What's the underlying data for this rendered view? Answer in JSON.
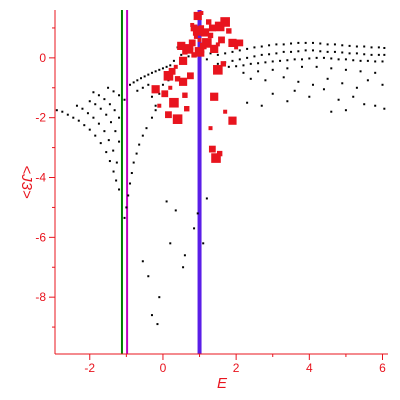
{
  "chart_data": {
    "type": "scatter",
    "title": "",
    "xlabel": "E",
    "ylabel": "<J3>",
    "xlim": [
      -2.95,
      6.15
    ],
    "ylim": [
      -9.9,
      1.6
    ],
    "x_ticks": [
      -2,
      0,
      2,
      4,
      6
    ],
    "y_ticks": [
      0,
      -2,
      -4,
      -6,
      -8
    ],
    "grid": false,
    "legend": "none",
    "colors": {
      "axis": "#e8141e",
      "small_points": "#000000",
      "large_points": "#e8141e",
      "line_green": "#008000",
      "line_magenta": "#c000c0",
      "line_blue": "#5a1ee8"
    },
    "vertical_lines": [
      {
        "x": -1.12,
        "color": "#008000"
      },
      {
        "x": -0.98,
        "color": "#c000c0"
      },
      {
        "x": 1.0,
        "color": "#5a1ee8"
      }
    ],
    "series": [
      {
        "marker": "small-black",
        "points": [
          [
            -2.9,
            -1.75
          ],
          [
            -2.75,
            -1.8
          ],
          [
            -2.6,
            -1.9
          ],
          [
            -2.45,
            -2.0
          ],
          [
            -2.3,
            -2.1
          ],
          [
            -2.15,
            -2.25
          ],
          [
            -2.0,
            -2.4
          ],
          [
            -1.85,
            -2.6
          ],
          [
            -1.7,
            -2.85
          ],
          [
            -1.55,
            -3.15
          ],
          [
            -1.45,
            -3.45
          ],
          [
            -1.35,
            -3.8
          ],
          [
            -1.28,
            -4.1
          ],
          [
            -1.2,
            -4.4
          ],
          [
            -2.35,
            -1.6
          ],
          [
            -2.2,
            -1.7
          ],
          [
            -2.05,
            -1.85
          ],
          [
            -1.9,
            -2.0
          ],
          [
            -1.75,
            -2.2
          ],
          [
            -1.6,
            -2.45
          ],
          [
            -1.48,
            -2.75
          ],
          [
            -1.36,
            -3.1
          ],
          [
            -1.26,
            -3.5
          ],
          [
            -2.0,
            -1.45
          ],
          [
            -1.85,
            -1.55
          ],
          [
            -1.7,
            -1.7
          ],
          [
            -1.55,
            -1.9
          ],
          [
            -1.42,
            -2.15
          ],
          [
            -1.3,
            -2.45
          ],
          [
            -1.2,
            -2.8
          ],
          [
            -1.9,
            -1.15
          ],
          [
            -1.75,
            -1.25
          ],
          [
            -1.6,
            -1.38
          ],
          [
            -1.45,
            -1.55
          ],
          [
            -1.32,
            -1.75
          ],
          [
            -1.2,
            -2.0
          ],
          [
            -1.5,
            -1.0
          ],
          [
            -1.35,
            -1.12
          ],
          [
            -1.2,
            -1.25
          ],
          [
            -1.05,
            -1.4
          ],
          [
            -1.05,
            -5.35
          ],
          [
            -1.0,
            -5.0
          ],
          [
            -0.95,
            -4.6
          ],
          [
            -0.9,
            -4.2
          ],
          [
            -0.85,
            -3.85
          ],
          [
            -0.8,
            -3.5
          ],
          [
            -0.72,
            -3.2
          ],
          [
            -0.65,
            -2.9
          ],
          [
            -0.55,
            -2.6
          ],
          [
            -0.45,
            -2.35
          ],
          [
            -0.3,
            -2.0
          ],
          [
            -0.2,
            -1.75
          ],
          [
            -0.55,
            -6.8
          ],
          [
            -0.4,
            -7.3
          ],
          [
            -0.3,
            -8.6
          ],
          [
            -0.15,
            -8.9
          ],
          [
            -0.1,
            -8.0
          ],
          [
            0.1,
            -4.8
          ],
          [
            0.2,
            -6.2
          ],
          [
            0.35,
            -5.1
          ],
          [
            0.55,
            -7.0
          ],
          [
            0.6,
            -6.6
          ],
          [
            0.85,
            -5.7
          ],
          [
            0.95,
            -5.2
          ],
          [
            1.1,
            -6.2
          ],
          [
            1.2,
            -4.7
          ],
          [
            -0.9,
            -0.9
          ],
          [
            -0.8,
            -0.82
          ],
          [
            -0.7,
            -0.75
          ],
          [
            -0.6,
            -0.68
          ],
          [
            -0.5,
            -0.62
          ],
          [
            -0.4,
            -0.56
          ],
          [
            -0.3,
            -0.5
          ],
          [
            -0.2,
            -0.45
          ],
          [
            -0.1,
            -0.4
          ],
          [
            0.0,
            -0.35
          ],
          [
            0.1,
            -0.3
          ],
          [
            0.2,
            -0.25
          ],
          [
            -0.7,
            -1.1
          ],
          [
            -0.55,
            -1.0
          ],
          [
            -0.4,
            -0.9
          ],
          [
            -0.3,
            -1.3
          ],
          [
            -0.2,
            -1.6
          ],
          [
            -0.1,
            -1.2
          ],
          [
            0.0,
            -0.9
          ],
          [
            0.15,
            -0.75
          ],
          [
            1.5,
            0.1
          ],
          [
            1.7,
            0.15
          ],
          [
            1.9,
            0.2
          ],
          [
            2.1,
            0.25
          ],
          [
            2.3,
            0.3
          ],
          [
            2.5,
            0.35
          ],
          [
            2.7,
            0.38
          ],
          [
            2.9,
            0.42
          ],
          [
            3.1,
            0.45
          ],
          [
            3.3,
            0.45
          ],
          [
            3.5,
            0.48
          ],
          [
            3.7,
            0.5
          ],
          [
            3.9,
            0.5
          ],
          [
            4.1,
            0.5
          ],
          [
            4.3,
            0.48
          ],
          [
            4.5,
            0.45
          ],
          [
            4.7,
            0.45
          ],
          [
            4.9,
            0.42
          ],
          [
            5.1,
            0.4
          ],
          [
            5.3,
            0.38
          ],
          [
            5.5,
            0.38
          ],
          [
            5.7,
            0.35
          ],
          [
            5.9,
            0.35
          ],
          [
            6.05,
            0.33
          ],
          [
            1.5,
            -0.2
          ],
          [
            1.7,
            -0.15
          ],
          [
            1.9,
            -0.1
          ],
          [
            2.1,
            -0.05
          ],
          [
            2.3,
            0.0
          ],
          [
            2.5,
            0.05
          ],
          [
            2.7,
            0.1
          ],
          [
            2.9,
            0.12
          ],
          [
            3.1,
            0.15
          ],
          [
            3.3,
            0.2
          ],
          [
            3.5,
            0.2
          ],
          [
            3.7,
            0.22
          ],
          [
            3.9,
            0.25
          ],
          [
            4.1,
            0.25
          ],
          [
            4.3,
            0.22
          ],
          [
            4.5,
            0.2
          ],
          [
            4.7,
            0.2
          ],
          [
            4.9,
            0.18
          ],
          [
            5.1,
            0.15
          ],
          [
            5.3,
            0.15
          ],
          [
            5.5,
            0.12
          ],
          [
            5.7,
            0.1
          ],
          [
            5.9,
            0.1
          ],
          [
            6.05,
            0.1
          ],
          [
            1.6,
            -0.35
          ],
          [
            1.8,
            -0.3
          ],
          [
            2.0,
            -0.28
          ],
          [
            2.2,
            -0.25
          ],
          [
            2.4,
            -0.2
          ],
          [
            2.6,
            -0.18
          ],
          [
            2.8,
            -0.15
          ],
          [
            3.0,
            -0.12
          ],
          [
            3.2,
            -0.1
          ],
          [
            3.4,
            -0.08
          ],
          [
            3.6,
            -0.05
          ],
          [
            3.8,
            -0.05
          ],
          [
            4.0,
            -0.02
          ],
          [
            4.2,
            0.0
          ],
          [
            4.4,
            0.0
          ],
          [
            4.6,
            -0.02
          ],
          [
            4.8,
            -0.05
          ],
          [
            5.0,
            -0.05
          ],
          [
            5.2,
            -0.08
          ],
          [
            5.4,
            -0.1
          ],
          [
            5.6,
            -0.1
          ],
          [
            5.8,
            -0.12
          ],
          [
            6.0,
            -0.12
          ],
          [
            2.2,
            -0.5
          ],
          [
            2.6,
            -0.45
          ],
          [
            3.0,
            -0.4
          ],
          [
            3.4,
            -0.35
          ],
          [
            3.8,
            -0.3
          ],
          [
            4.2,
            -0.3
          ],
          [
            4.6,
            -0.35
          ],
          [
            5.0,
            -0.4
          ],
          [
            5.4,
            -0.45
          ],
          [
            5.8,
            -0.5
          ],
          [
            2.4,
            -0.7
          ],
          [
            2.8,
            -0.75
          ],
          [
            3.3,
            -0.65
          ],
          [
            3.7,
            -0.8
          ],
          [
            4.1,
            -0.9
          ],
          [
            4.5,
            -0.7
          ],
          [
            4.9,
            -0.85
          ],
          [
            5.3,
            -1.0
          ],
          [
            5.6,
            -0.75
          ],
          [
            6.0,
            -0.9
          ],
          [
            3.0,
            -1.2
          ],
          [
            3.6,
            -1.1
          ],
          [
            4.0,
            -1.3
          ],
          [
            4.4,
            -1.05
          ],
          [
            4.8,
            -1.4
          ],
          [
            5.2,
            -1.3
          ],
          [
            5.5,
            -1.55
          ],
          [
            5.8,
            -1.6
          ],
          [
            6.05,
            -1.7
          ],
          [
            2.3,
            -1.5
          ],
          [
            2.7,
            -1.6
          ],
          [
            3.4,
            -1.45
          ],
          [
            4.6,
            -1.8
          ],
          [
            5.0,
            -1.75
          ],
          [
            0.4,
            0.35
          ],
          [
            0.6,
            0.4
          ],
          [
            0.8,
            0.3
          ],
          [
            1.1,
            0.2
          ],
          [
            1.3,
            0.15
          ],
          [
            0.5,
            0.1
          ],
          [
            0.7,
            0.05
          ],
          [
            1.2,
            -0.05
          ],
          [
            0.3,
            -0.1
          ]
        ]
      },
      {
        "marker": "large-red",
        "points": [
          [
            0.8,
            1.1
          ],
          [
            0.85,
            1.0
          ],
          [
            0.95,
            0.9
          ],
          [
            1.05,
            1.0
          ],
          [
            1.15,
            0.85
          ],
          [
            0.9,
            0.7
          ],
          [
            0.8,
            0.5
          ],
          [
            0.7,
            0.3
          ],
          [
            0.6,
            0.2
          ],
          [
            0.5,
            0.4
          ],
          [
            1.0,
            0.6
          ],
          [
            1.1,
            0.4
          ],
          [
            1.2,
            0.5
          ],
          [
            1.3,
            0.75
          ],
          [
            1.4,
            0.3
          ],
          [
            1.5,
            0.45
          ],
          [
            1.6,
            0.6
          ],
          [
            1.7,
            1.2
          ],
          [
            1.8,
            0.9
          ],
          [
            1.9,
            0.5
          ],
          [
            2.0,
            0.35
          ],
          [
            2.1,
            0.5
          ],
          [
            1.55,
            1.05
          ],
          [
            1.25,
            1.2
          ],
          [
            0.95,
            1.4
          ],
          [
            1.05,
            1.5
          ],
          [
            1.35,
            1.0
          ],
          [
            1.0,
            0.2
          ],
          [
            0.85,
            0.1
          ],
          [
            0.55,
            -0.1
          ],
          [
            0.35,
            -0.3
          ],
          [
            0.25,
            -0.45
          ],
          [
            0.15,
            -0.6
          ],
          [
            0.4,
            -0.7
          ],
          [
            0.55,
            -0.8
          ],
          [
            0.2,
            -1.0
          ],
          [
            0.05,
            -1.2
          ],
          [
            0.3,
            -1.5
          ],
          [
            0.6,
            -1.25
          ],
          [
            -0.2,
            -1.05
          ],
          [
            -0.1,
            -1.6
          ],
          [
            0.15,
            -1.9
          ],
          [
            0.4,
            -2.05
          ],
          [
            0.65,
            -1.7
          ],
          [
            1.4,
            -1.3
          ],
          [
            1.3,
            -2.35
          ],
          [
            1.35,
            -3.05
          ],
          [
            1.45,
            -3.35
          ],
          [
            1.55,
            -3.2
          ],
          [
            1.9,
            -2.1
          ],
          [
            1.7,
            -1.8
          ],
          [
            0.75,
            -0.6
          ],
          [
            1.5,
            -0.4
          ],
          [
            1.65,
            -0.2
          ]
        ]
      }
    ]
  }
}
